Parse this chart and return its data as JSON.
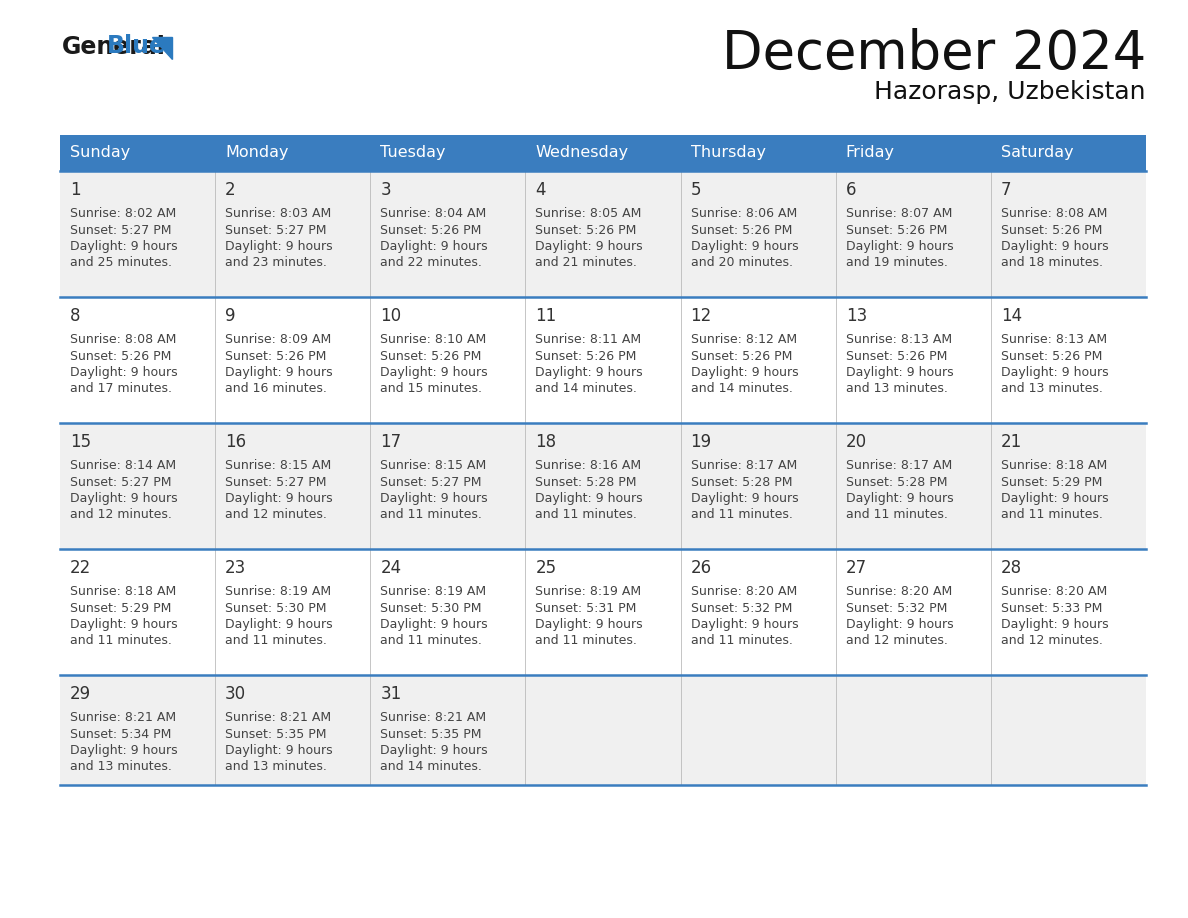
{
  "title": "December 2024",
  "subtitle": "Hazorasp, Uzbekistan",
  "days_of_week": [
    "Sunday",
    "Monday",
    "Tuesday",
    "Wednesday",
    "Thursday",
    "Friday",
    "Saturday"
  ],
  "header_color": "#3a7dbf",
  "header_text_color": "#ffffff",
  "cell_bg_odd": "#f0f0f0",
  "cell_bg_even": "#ffffff",
  "separator_color": "#3a7dbf",
  "text_color": "#444444",
  "day_num_color": "#333333",
  "calendar_data": [
    [
      {
        "day": 1,
        "sunrise": "8:02 AM",
        "sunset": "5:27 PM",
        "daylight": "9 hours and 25 minutes."
      },
      {
        "day": 2,
        "sunrise": "8:03 AM",
        "sunset": "5:27 PM",
        "daylight": "9 hours and 23 minutes."
      },
      {
        "day": 3,
        "sunrise": "8:04 AM",
        "sunset": "5:26 PM",
        "daylight": "9 hours and 22 minutes."
      },
      {
        "day": 4,
        "sunrise": "8:05 AM",
        "sunset": "5:26 PM",
        "daylight": "9 hours and 21 minutes."
      },
      {
        "day": 5,
        "sunrise": "8:06 AM",
        "sunset": "5:26 PM",
        "daylight": "9 hours and 20 minutes."
      },
      {
        "day": 6,
        "sunrise": "8:07 AM",
        "sunset": "5:26 PM",
        "daylight": "9 hours and 19 minutes."
      },
      {
        "day": 7,
        "sunrise": "8:08 AM",
        "sunset": "5:26 PM",
        "daylight": "9 hours and 18 minutes."
      }
    ],
    [
      {
        "day": 8,
        "sunrise": "8:08 AM",
        "sunset": "5:26 PM",
        "daylight": "9 hours and 17 minutes."
      },
      {
        "day": 9,
        "sunrise": "8:09 AM",
        "sunset": "5:26 PM",
        "daylight": "9 hours and 16 minutes."
      },
      {
        "day": 10,
        "sunrise": "8:10 AM",
        "sunset": "5:26 PM",
        "daylight": "9 hours and 15 minutes."
      },
      {
        "day": 11,
        "sunrise": "8:11 AM",
        "sunset": "5:26 PM",
        "daylight": "9 hours and 14 minutes."
      },
      {
        "day": 12,
        "sunrise": "8:12 AM",
        "sunset": "5:26 PM",
        "daylight": "9 hours and 14 minutes."
      },
      {
        "day": 13,
        "sunrise": "8:13 AM",
        "sunset": "5:26 PM",
        "daylight": "9 hours and 13 minutes."
      },
      {
        "day": 14,
        "sunrise": "8:13 AM",
        "sunset": "5:26 PM",
        "daylight": "9 hours and 13 minutes."
      }
    ],
    [
      {
        "day": 15,
        "sunrise": "8:14 AM",
        "sunset": "5:27 PM",
        "daylight": "9 hours and 12 minutes."
      },
      {
        "day": 16,
        "sunrise": "8:15 AM",
        "sunset": "5:27 PM",
        "daylight": "9 hours and 12 minutes."
      },
      {
        "day": 17,
        "sunrise": "8:15 AM",
        "sunset": "5:27 PM",
        "daylight": "9 hours and 11 minutes."
      },
      {
        "day": 18,
        "sunrise": "8:16 AM",
        "sunset": "5:28 PM",
        "daylight": "9 hours and 11 minutes."
      },
      {
        "day": 19,
        "sunrise": "8:17 AM",
        "sunset": "5:28 PM",
        "daylight": "9 hours and 11 minutes."
      },
      {
        "day": 20,
        "sunrise": "8:17 AM",
        "sunset": "5:28 PM",
        "daylight": "9 hours and 11 minutes."
      },
      {
        "day": 21,
        "sunrise": "8:18 AM",
        "sunset": "5:29 PM",
        "daylight": "9 hours and 11 minutes."
      }
    ],
    [
      {
        "day": 22,
        "sunrise": "8:18 AM",
        "sunset": "5:29 PM",
        "daylight": "9 hours and 11 minutes."
      },
      {
        "day": 23,
        "sunrise": "8:19 AM",
        "sunset": "5:30 PM",
        "daylight": "9 hours and 11 minutes."
      },
      {
        "day": 24,
        "sunrise": "8:19 AM",
        "sunset": "5:30 PM",
        "daylight": "9 hours and 11 minutes."
      },
      {
        "day": 25,
        "sunrise": "8:19 AM",
        "sunset": "5:31 PM",
        "daylight": "9 hours and 11 minutes."
      },
      {
        "day": 26,
        "sunrise": "8:20 AM",
        "sunset": "5:32 PM",
        "daylight": "9 hours and 11 minutes."
      },
      {
        "day": 27,
        "sunrise": "8:20 AM",
        "sunset": "5:32 PM",
        "daylight": "9 hours and 12 minutes."
      },
      {
        "day": 28,
        "sunrise": "8:20 AM",
        "sunset": "5:33 PM",
        "daylight": "9 hours and 12 minutes."
      }
    ],
    [
      {
        "day": 29,
        "sunrise": "8:21 AM",
        "sunset": "5:34 PM",
        "daylight": "9 hours and 13 minutes."
      },
      {
        "day": 30,
        "sunrise": "8:21 AM",
        "sunset": "5:35 PM",
        "daylight": "9 hours and 13 minutes."
      },
      {
        "day": 31,
        "sunrise": "8:21 AM",
        "sunset": "5:35 PM",
        "daylight": "9 hours and 14 minutes."
      },
      null,
      null,
      null,
      null
    ]
  ]
}
